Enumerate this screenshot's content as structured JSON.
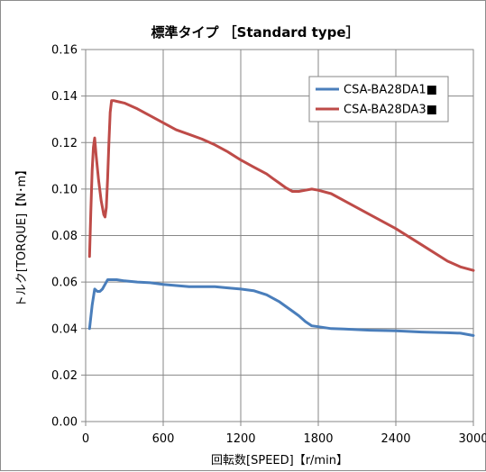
{
  "chart_data": {
    "type": "line",
    "title": "標準タイプ ［Standard type］",
    "xlabel": "回転数[SPEED]【r/min】",
    "ylabel": "トルク[TORQUE]【N･m】",
    "xlim": [
      0,
      3000
    ],
    "ylim": [
      0,
      0.16
    ],
    "xticks": [
      "0",
      "600",
      "1200",
      "1800",
      "2400",
      "3000"
    ],
    "yticks": [
      "0.00",
      "0.02",
      "0.04",
      "0.06",
      "0.08",
      "0.10",
      "0.12",
      "0.14",
      "0.16"
    ],
    "grid": true,
    "legend_position": "top-right",
    "series": [
      {
        "name": "CSA-BA28DA1■",
        "color": "#4a7ebb",
        "x": [
          30,
          50,
          70,
          90,
          110,
          130,
          150,
          170,
          200,
          240,
          300,
          400,
          500,
          600,
          700,
          800,
          900,
          1000,
          1100,
          1200,
          1300,
          1400,
          1500,
          1600,
          1650,
          1700,
          1750,
          1800,
          1900,
          2000,
          2200,
          2400,
          2600,
          2800,
          2900,
          3000
        ],
        "values": [
          0.04,
          0.05,
          0.057,
          0.056,
          0.056,
          0.057,
          0.059,
          0.061,
          0.061,
          0.061,
          0.0605,
          0.06,
          0.0597,
          0.059,
          0.0585,
          0.058,
          0.058,
          0.058,
          0.0575,
          0.057,
          0.0563,
          0.0545,
          0.0515,
          0.0475,
          0.0455,
          0.043,
          0.0412,
          0.0408,
          0.04,
          0.0398,
          0.0393,
          0.039,
          0.0385,
          0.0382,
          0.038,
          0.037
        ]
      },
      {
        "name": "CSA-BA28DA3■",
        "color": "#be4b48",
        "x": [
          30,
          40,
          50,
          60,
          70,
          80,
          100,
          120,
          140,
          150,
          160,
          170,
          180,
          190,
          200,
          220,
          260,
          300,
          400,
          500,
          600,
          700,
          800,
          900,
          1000,
          1100,
          1200,
          1300,
          1400,
          1450,
          1500,
          1550,
          1600,
          1650,
          1700,
          1750,
          1800,
          1900,
          2000,
          2200,
          2400,
          2600,
          2800,
          2900,
          3000
        ],
        "values": [
          0.071,
          0.09,
          0.108,
          0.118,
          0.122,
          0.115,
          0.104,
          0.095,
          0.089,
          0.088,
          0.092,
          0.105,
          0.12,
          0.133,
          0.138,
          0.138,
          0.1375,
          0.137,
          0.1345,
          0.1315,
          0.1285,
          0.1255,
          0.1235,
          0.1215,
          0.119,
          0.116,
          0.1125,
          0.1095,
          0.1065,
          0.1045,
          0.1025,
          0.1005,
          0.099,
          0.099,
          0.0995,
          0.1,
          0.0995,
          0.098,
          0.095,
          0.089,
          0.083,
          0.076,
          0.069,
          0.0665,
          0.065
        ]
      }
    ]
  }
}
